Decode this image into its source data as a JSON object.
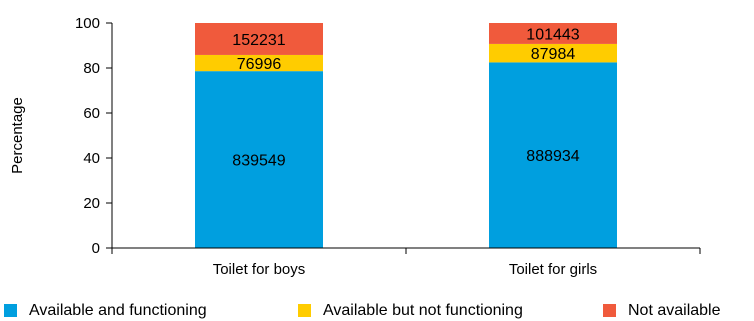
{
  "chart_data": {
    "type": "bar",
    "stacked": true,
    "categories": [
      "Toilet for boys",
      "Toilet for girls"
    ],
    "ylabel": "Percentage",
    "ylim": [
      0,
      100
    ],
    "yticks": [
      "0",
      "20",
      "40",
      "60",
      "80",
      "100"
    ],
    "series": [
      {
        "name": "Available and functioning",
        "color": "#009fdf",
        "values": [
          78.6,
          82.5
        ],
        "labels": [
          "839549",
          "888934"
        ]
      },
      {
        "name": "Available but not functioning",
        "color": "#ffcc00",
        "values": [
          7.2,
          8.2
        ],
        "labels": [
          "76996",
          "87984"
        ]
      },
      {
        "name": "Not available",
        "color": "#f05a3c",
        "values": [
          14.2,
          9.3
        ],
        "labels": [
          "152231",
          "101443"
        ]
      }
    ],
    "legend_position": "bottom"
  }
}
